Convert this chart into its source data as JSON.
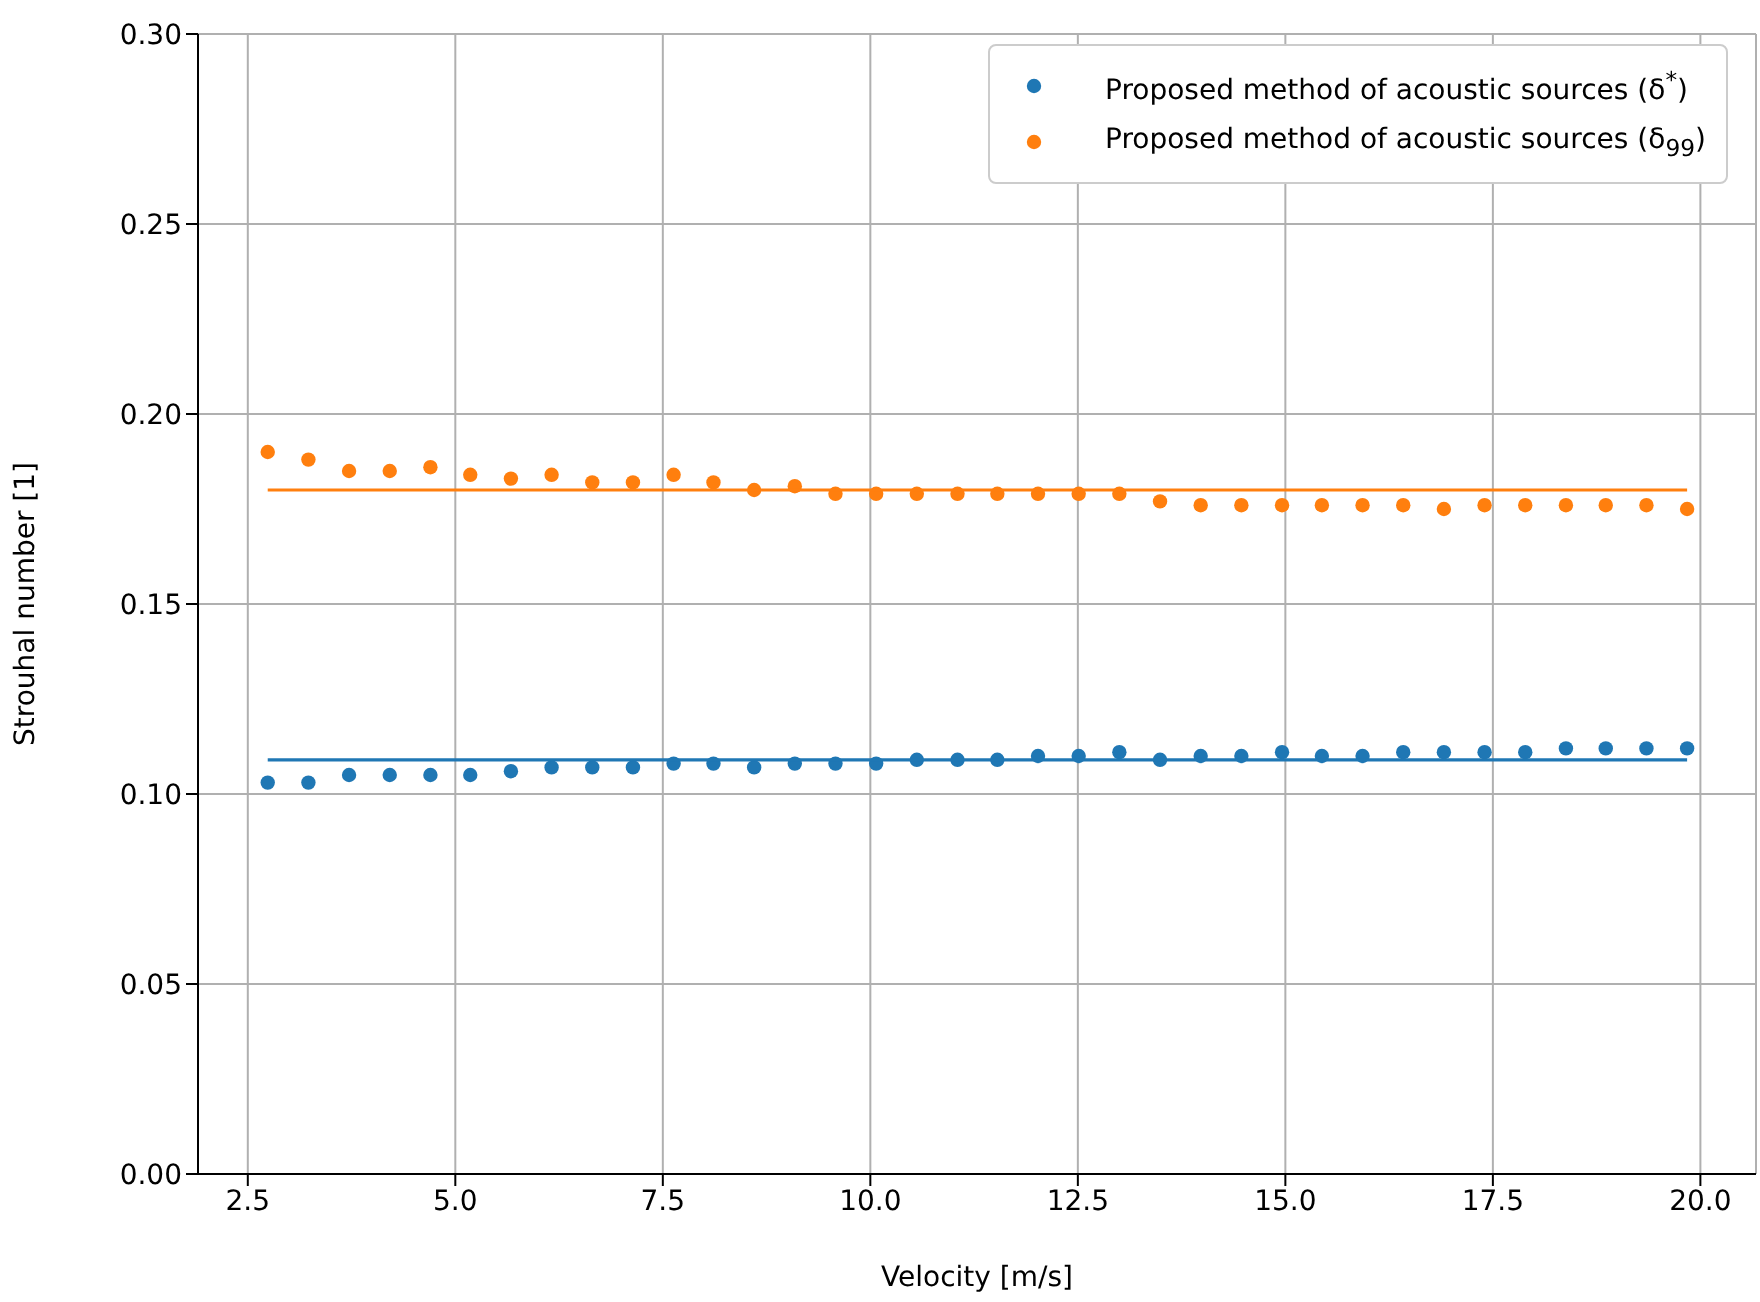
{
  "chart_data": {
    "type": "scatter",
    "xlabel": "Velocity [m/s]",
    "ylabel": "Strouhal number [1]",
    "x": [
      2.74,
      3.23,
      3.72,
      4.21,
      4.7,
      5.18,
      5.67,
      6.16,
      6.65,
      7.14,
      7.63,
      8.11,
      8.6,
      9.09,
      9.58,
      10.07,
      10.56,
      11.05,
      11.53,
      12.02,
      12.51,
      13.0,
      13.49,
      13.98,
      14.47,
      14.96,
      15.44,
      15.93,
      16.42,
      16.91,
      17.4,
      17.89,
      18.38,
      18.86,
      19.35,
      19.84
    ],
    "series": [
      {
        "name": "Proposed method of acoustic sources (δ$^{*}$)",
        "color": "#1f77b4",
        "marker": "circle",
        "values": [
          0.103,
          0.103,
          0.105,
          0.105,
          0.105,
          0.105,
          0.106,
          0.107,
          0.107,
          0.107,
          0.108,
          0.108,
          0.107,
          0.108,
          0.108,
          0.108,
          0.109,
          0.109,
          0.109,
          0.11,
          0.11,
          0.111,
          0.109,
          0.11,
          0.11,
          0.111,
          0.11,
          0.11,
          0.111,
          0.111,
          0.111,
          0.111,
          0.112,
          0.112,
          0.112,
          0.112
        ]
      },
      {
        "name": "Proposed method of acoustic sources (δ$_{99}$)",
        "color": "#ff7f0e",
        "marker": "circle",
        "values": [
          0.19,
          0.188,
          0.185,
          0.185,
          0.186,
          0.184,
          0.183,
          0.184,
          0.182,
          0.182,
          0.184,
          0.182,
          0.18,
          0.181,
          0.179,
          0.179,
          0.179,
          0.179,
          0.179,
          0.179,
          0.179,
          0.179,
          0.177,
          0.176,
          0.176,
          0.176,
          0.176,
          0.176,
          0.176,
          0.175,
          0.176,
          0.176,
          0.176,
          0.176,
          0.176,
          0.175
        ]
      },
      {
        "type": "line",
        "color": "#1f77b4",
        "values": [
          0.109,
          0.109,
          0.109,
          0.109,
          0.109,
          0.109,
          0.109,
          0.109,
          0.109,
          0.109,
          0.109,
          0.109,
          0.109,
          0.109,
          0.109,
          0.109,
          0.109,
          0.109,
          0.109,
          0.109,
          0.109,
          0.109,
          0.109,
          0.109,
          0.109,
          0.109,
          0.109,
          0.109,
          0.109,
          0.109,
          0.109,
          0.109,
          0.109,
          0.109,
          0.109,
          0.109
        ]
      },
      {
        "type": "line",
        "color": "#ff7f0e",
        "values": [
          0.18,
          0.18,
          0.18,
          0.18,
          0.18,
          0.18,
          0.18,
          0.18,
          0.18,
          0.18,
          0.18,
          0.18,
          0.18,
          0.18,
          0.18,
          0.18,
          0.18,
          0.18,
          0.18,
          0.18,
          0.18,
          0.18,
          0.18,
          0.18,
          0.18,
          0.18,
          0.18,
          0.18,
          0.18,
          0.18,
          0.18,
          0.18,
          0.18,
          0.18,
          0.18,
          0.18
        ]
      }
    ],
    "xlim": [
      1.9,
      20.67
    ],
    "xticks": [
      2.5,
      {
        "value": 5,
        "label": "5.0"
      },
      7.5,
      {
        "value": 10,
        "label": "10.0"
      },
      12.5,
      {
        "value": 15,
        "label": "15.0"
      },
      17.5,
      {
        "value": 20,
        "label": "20.0"
      }
    ],
    "ylim": [
      0,
      0.3
    ],
    "yticks": [
      {
        "value": 0,
        "label": "0.00"
      },
      {
        "value": 0.05,
        "label": "0.05"
      },
      {
        "value": 0.1,
        "label": "0.10"
      },
      {
        "value": 0.15,
        "label": "0.15"
      },
      {
        "value": 0.2,
        "label": "0.20"
      },
      {
        "value": 0.25,
        "label": "0.25"
      },
      {
        "value": 0.3,
        "label": "0.30"
      }
    ],
    "grid": true,
    "legend": "top right",
    "line_style": "solid"
  }
}
